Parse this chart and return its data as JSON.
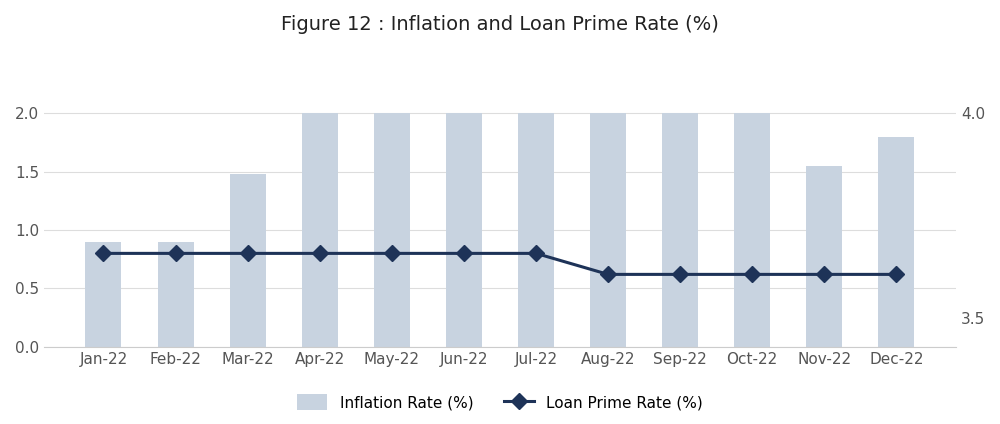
{
  "title": "Figure 12 : Inflation and Loan Prime Rate (%)",
  "months": [
    "Jan-22",
    "Feb-22",
    "Mar-22",
    "Apr-22",
    "May-22",
    "Jun-22",
    "Jul-22",
    "Aug-22",
    "Sep-22",
    "Oct-22",
    "Nov-22",
    "Dec-22"
  ],
  "inflation_rate": [
    0.9,
    0.9,
    1.48,
    2.0,
    2.0,
    2.0,
    2.0,
    2.0,
    2.0,
    2.0,
    1.55,
    1.8
  ],
  "loan_prime_rate_left": [
    0.8,
    0.8,
    0.8,
    0.8,
    0.8,
    0.8,
    0.8,
    0.62,
    0.62,
    0.62,
    0.62,
    0.62
  ],
  "bar_color": "#c8d3e0",
  "line_color": "#1e3358",
  "background_color": "#ffffff",
  "ylim_left": [
    0.0,
    2.5
  ],
  "yticks_left": [
    0.0,
    0.5,
    1.0,
    1.5,
    2.0
  ],
  "yticks_right_labels": [
    "3.5",
    "4.0"
  ],
  "yticks_right_pos": [
    0.25,
    2.0
  ],
  "legend_bar_label": "Inflation Rate (%)",
  "legend_line_label": "Loan Prime Rate (%)",
  "title_fontsize": 14,
  "tick_fontsize": 11,
  "legend_fontsize": 11
}
